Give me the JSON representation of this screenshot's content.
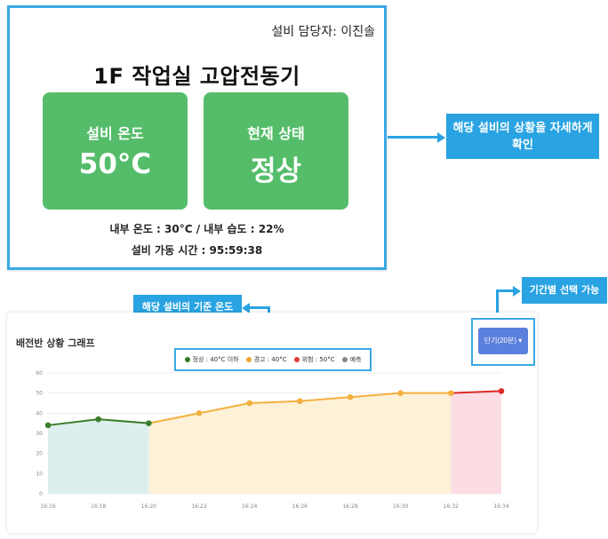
{
  "equipment": {
    "manager_label": "설비 담당자: 이진솔",
    "title": "1F 작업실 고압전동기",
    "temp_tile": {
      "label": "설비 온도",
      "value": "50°C"
    },
    "status_tile": {
      "label": "현재 상태",
      "value": "정상"
    },
    "inner_info": "내부 온도 : 30°C / 내부 습도 : 22%",
    "runtime": "설비 가동 시간 : 95:59:38"
  },
  "callouts": {
    "detail": "해당 설비의 상황을 자세하게 확인",
    "baseline": "해당 설비의 기준 온도",
    "period": "기간별 선택 가능"
  },
  "chart_panel": {
    "title": "배전반 상황 그래프",
    "period_button": "단기(20분) ▾",
    "legend": [
      {
        "label": "정상 : 40°C 이하",
        "color": "#2e7d1f"
      },
      {
        "label": "경고 : 40°C",
        "color": "#f0a830"
      },
      {
        "label": "위험 : 50°C",
        "color": "#e53935"
      },
      {
        "label": "예측",
        "color": "#888888"
      }
    ]
  },
  "colors": {
    "accent": "#29a3e2",
    "tile_green": "#55bd6a",
    "normal": "#3a7d28",
    "warning": "#f4b03e",
    "danger": "#e02828",
    "normal_fill": "#dcefee",
    "warning_fill": "#fdf1d8",
    "danger_fill": "#fbdde3"
  },
  "chart_data": {
    "type": "line",
    "x": [
      "16:16",
      "16:18",
      "16:20",
      "16:22",
      "16:24",
      "16:26",
      "16:28",
      "16:30",
      "16:32",
      "16:34"
    ],
    "y": [
      34,
      37,
      35,
      40,
      45,
      46,
      48,
      50,
      50,
      51
    ],
    "ylim": [
      0,
      60
    ],
    "yticks": [
      0,
      10,
      20,
      30,
      40,
      50,
      60
    ],
    "zones": [
      {
        "name": "정상",
        "from": "16:16",
        "to": "16:20"
      },
      {
        "name": "경고",
        "from": "16:20",
        "to": "16:32"
      },
      {
        "name": "위험",
        "from": "16:32",
        "to": "16:34"
      }
    ],
    "grid": true
  }
}
